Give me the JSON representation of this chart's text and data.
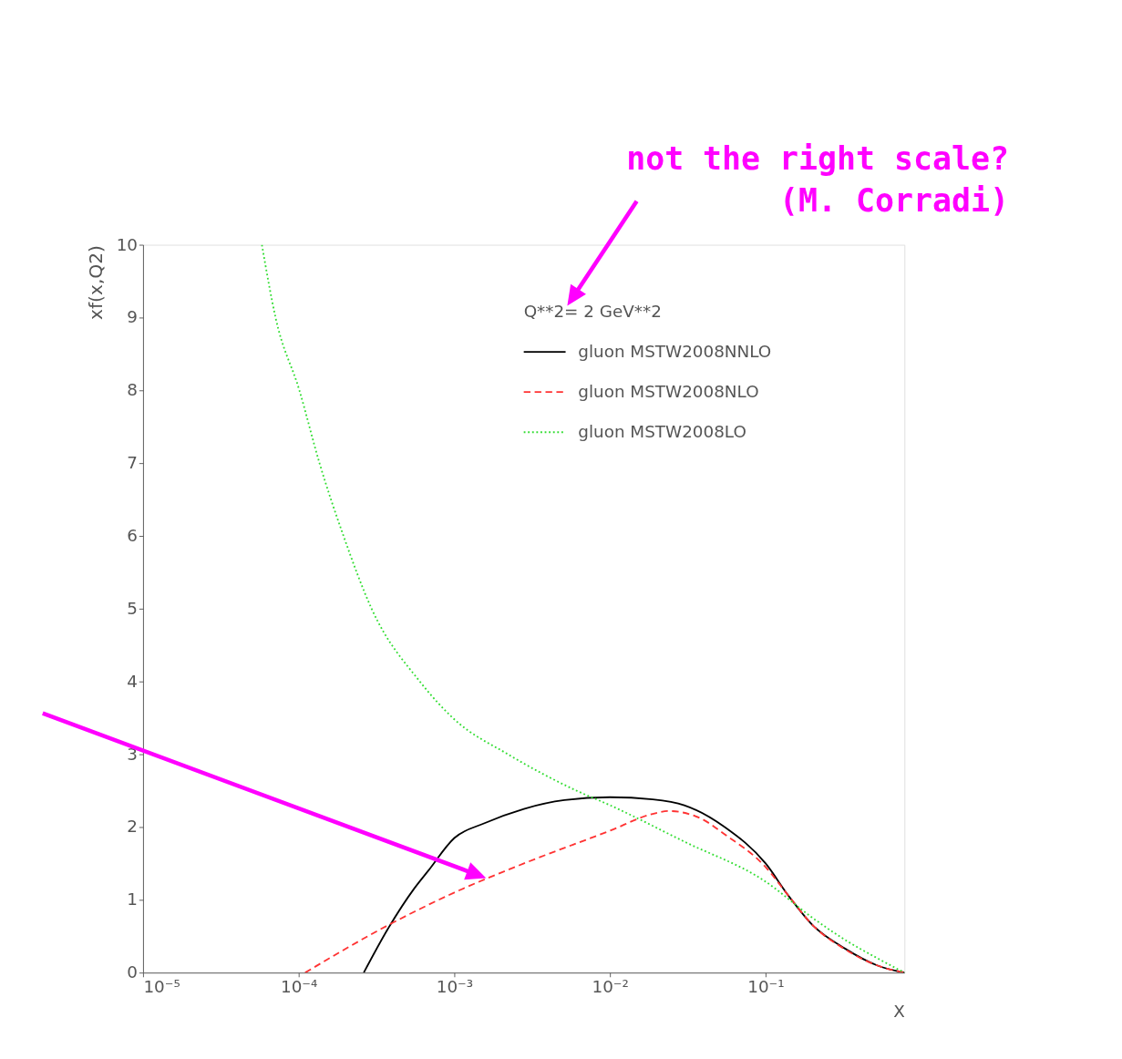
{
  "chart_data": {
    "type": "line",
    "xlabel": "X",
    "ylabel": "xf(x,Q2)",
    "legend_title": "Q**2= 2 GeV**2",
    "annotations": [
      "not the right scale?\n(M. Corradi)"
    ],
    "log": "x",
    "xlim": [
      1e-05,
      0.78
    ],
    "ylim": [
      0,
      10
    ],
    "xticks": [
      {
        "value": 1e-05,
        "label": "10⁻⁵"
      },
      {
        "value": 0.0001,
        "label": "10⁻⁴"
      },
      {
        "value": 0.001,
        "label": "10⁻³"
      },
      {
        "value": 0.01,
        "label": "10⁻²"
      },
      {
        "value": 0.1,
        "label": "10⁻¹"
      }
    ],
    "yticks": [
      0,
      1,
      2,
      3,
      4,
      5,
      6,
      7,
      8,
      9,
      10
    ],
    "grid": false,
    "legend": "top right",
    "series": [
      {
        "name": "gluon MSTW2008NNLO",
        "color": "#000000",
        "line_style": "solid",
        "x": [
          0.000262,
          0.000374,
          0.00055,
          0.00068,
          0.001,
          0.00155,
          0.0028,
          0.0051,
          0.01,
          0.0188,
          0.03,
          0.0546,
          0.1,
          0.141,
          0.201,
          0.324,
          0.52,
          0.78
        ],
        "values": [
          0,
          0.6,
          1.15,
          1.4,
          1.85,
          2.05,
          2.25,
          2.37,
          2.41,
          2.38,
          2.3,
          2.0,
          1.5,
          1.05,
          0.65,
          0.33,
          0.1,
          0
        ]
      },
      {
        "name": "gluon MSTW2008NLO",
        "color": "#ff3333",
        "line_style": "dashed",
        "x": [
          0.00011,
          0.000374,
          0.001,
          0.0028,
          0.01,
          0.0188,
          0.0238,
          0.0382,
          0.0546,
          0.1,
          0.141,
          0.201,
          0.324,
          0.52,
          0.78
        ],
        "values": [
          0,
          0.65,
          1.1,
          1.5,
          1.95,
          2.18,
          2.22,
          2.12,
          1.9,
          1.45,
          1.05,
          0.65,
          0.32,
          0.1,
          0
        ]
      },
      {
        "name": "gluon MSTW2008LO",
        "color": "#33dd33",
        "line_style": "dotted",
        "x": [
          5.8e-05,
          7.1e-05,
          0.000101,
          0.000136,
          0.000194,
          0.000294,
          0.0006,
          0.001,
          0.00221,
          0.0061,
          0.01,
          0.03,
          0.1,
          0.201,
          0.324,
          0.52,
          0.78
        ],
        "values": [
          10,
          9,
          8,
          7,
          6,
          5,
          4,
          3.48,
          3,
          2.5,
          2.3,
          1.8,
          1.25,
          0.75,
          0.45,
          0.2,
          0
        ]
      }
    ]
  }
}
